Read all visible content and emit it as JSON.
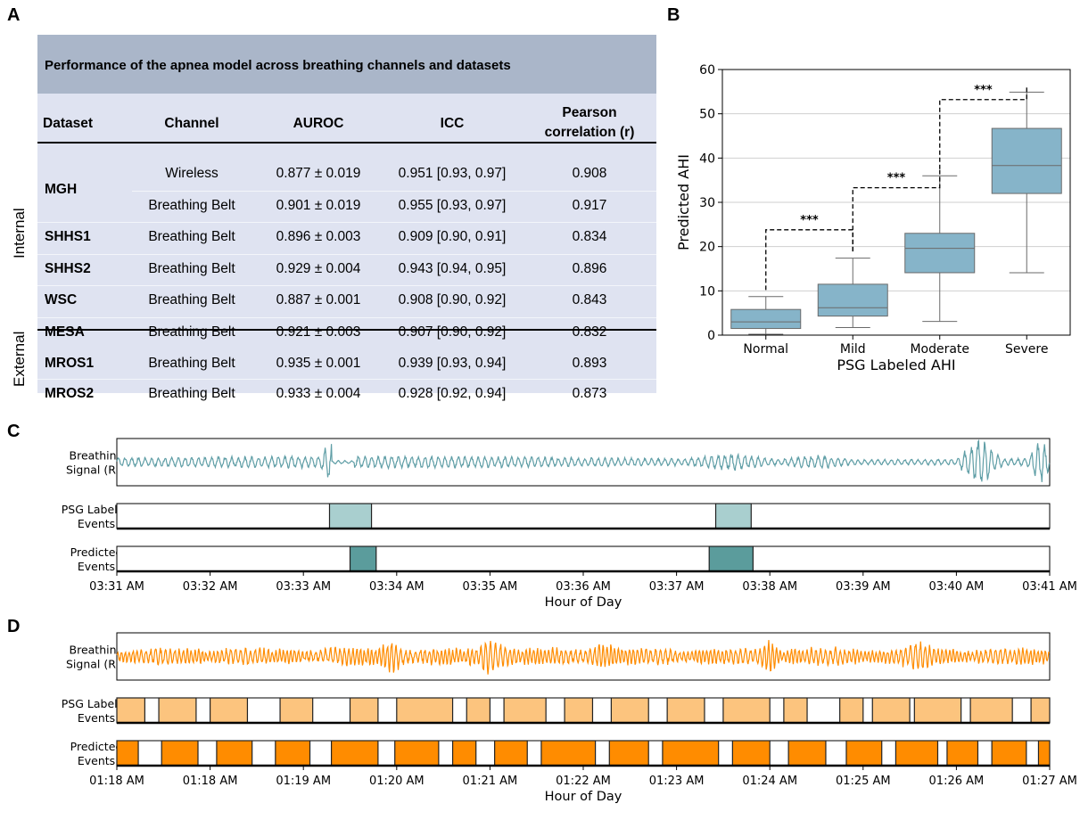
{
  "panels": {
    "a": "A",
    "b": "B",
    "c": "C",
    "d": "D"
  },
  "table": {
    "caption": "Performance of the apnea model across breathing channels and datasets",
    "headers": [
      "Dataset",
      "Channel",
      "AUROC",
      "ICC",
      "Pearson",
      "correlation (r)"
    ],
    "group_internal": "Internal",
    "group_external": "External",
    "rows": [
      {
        "dataset": "MGH",
        "channel": "Wireless",
        "auroc": "0.877 ± 0.019",
        "icc": "0.951 [0.93, 0.97]",
        "r": "0.908"
      },
      {
        "dataset": "",
        "channel": "Breathing Belt",
        "auroc": "0.901 ± 0.019",
        "icc": "0.955 [0.93, 0.97]",
        "r": "0.917"
      },
      {
        "dataset": "SHHS1",
        "channel": "Breathing Belt",
        "auroc": "0.896 ± 0.003",
        "icc": "0.909 [0.90, 0.91]",
        "r": "0.834"
      },
      {
        "dataset": "SHHS2",
        "channel": "Breathing Belt",
        "auroc": "0.929 ± 0.004",
        "icc": "0.943 [0.94, 0.95]",
        "r": "0.896"
      },
      {
        "dataset": "WSC",
        "channel": "Breathing Belt",
        "auroc": "0.887 ± 0.001",
        "icc": "0.908 [0.90, 0.92]",
        "r": "0.843"
      },
      {
        "dataset": "MESA",
        "channel": "Breathing Belt",
        "auroc": "0.921 ± 0.003",
        "icc": "0.907 [0.90, 0.92]",
        "r": "0.832"
      },
      {
        "dataset": "MROS1",
        "channel": "Breathing Belt",
        "auroc": "0.935 ± 0.001",
        "icc": "0.939 [0.93, 0.94]",
        "r": "0.893"
      },
      {
        "dataset": "MROS2",
        "channel": "Breathing Belt",
        "auroc": "0.933 ± 0.004",
        "icc": "0.928 [0.92, 0.94]",
        "r": "0.873"
      }
    ]
  },
  "chart_data": [
    {
      "type": "box",
      "xlabel": "PSG Labeled AHI",
      "ylabel": "Predicted AHI",
      "ylim": [
        0,
        60
      ],
      "yticks": [
        "0",
        "10",
        "20",
        "30",
        "40",
        "50",
        "60"
      ],
      "categories": [
        "Normal",
        "Mild",
        "Moderate",
        "Severe"
      ],
      "boxes": [
        {
          "min": 0.2,
          "q1": 1.5,
          "median": 3.0,
          "q3": 5.8,
          "max": 8.7
        },
        {
          "min": 1.7,
          "q1": 4.3,
          "median": 6.2,
          "q3": 11.5,
          "max": 17.4
        },
        {
          "min": 3.1,
          "q1": 14.1,
          "median": 19.6,
          "q3": 23.0,
          "max": 36.0
        },
        {
          "min": 14.1,
          "q1": 32.0,
          "median": 38.3,
          "q3": 46.7,
          "max": 54.9
        }
      ],
      "significance": [
        {
          "from": 0,
          "to": 1,
          "label": "***",
          "y": 23.8
        },
        {
          "from": 1,
          "to": 2,
          "label": "***",
          "y": 33.3
        },
        {
          "from": 2,
          "to": 3,
          "label": "***",
          "y": 53.2
        }
      ],
      "color": "#86b4c9",
      "grid": "horizontal"
    },
    {
      "type": "timeline",
      "rows": [
        "Breathing\nSignal (RF)",
        "PSG Labeled\nEvents",
        "Predicted\nEvents"
      ],
      "row_labels": [
        [
          "Breathing",
          "Signal (RF)"
        ],
        [
          "PSG Labeled",
          "Events"
        ],
        [
          "Predicted",
          "Events"
        ]
      ],
      "xlabel": "Hour of Day",
      "xticks": [
        "03:31 AM",
        "03:32 AM",
        "03:33 AM",
        "03:34 AM",
        "03:35 AM",
        "03:36 AM",
        "03:37 AM",
        "03:38 AM",
        "03:39 AM",
        "03:40 AM",
        "03:41 AM"
      ],
      "x_range_minutes": [
        0,
        10
      ],
      "signal_color": "#5f9ea6",
      "psg_events": [
        [
          2.28,
          2.73
        ],
        [
          6.42,
          6.8
        ]
      ],
      "predicted_events": [
        [
          2.5,
          2.78
        ],
        [
          6.35,
          6.82
        ]
      ],
      "psg_color": "#a9cfcf",
      "pred_color": "#5b9c9c"
    },
    {
      "type": "timeline",
      "rows": [
        "Breathing\nSignal (RF)",
        "PSG Labeled\nEvents",
        "Predicted\nEvents"
      ],
      "row_labels": [
        [
          "Breathing",
          "Signal (RF)"
        ],
        [
          "PSG Labeled",
          "Events"
        ],
        [
          "Predicted",
          "Events"
        ]
      ],
      "xlabel": "Hour of Day",
      "xticks": [
        "01:18 AM",
        "01:18 AM",
        "01:19 AM",
        "01:20 AM",
        "01:21 AM",
        "01:22 AM",
        "01:23 AM",
        "01:24 AM",
        "01:25 AM",
        "01:26 AM",
        "01:27 AM"
      ],
      "x_range_minutes": [
        0,
        10
      ],
      "signal_color": "#ff8c00",
      "psg_events": [
        [
          0,
          0.3
        ],
        [
          0.45,
          0.85
        ],
        [
          1.0,
          1.4
        ],
        [
          1.75,
          2.1
        ],
        [
          2.5,
          2.8
        ],
        [
          3.0,
          3.6
        ],
        [
          3.75,
          4.0
        ],
        [
          4.15,
          4.6
        ],
        [
          4.8,
          5.1
        ],
        [
          5.3,
          5.7
        ],
        [
          5.9,
          6.3
        ],
        [
          6.5,
          7.0
        ],
        [
          7.15,
          7.4
        ],
        [
          7.75,
          8.0
        ],
        [
          8.1,
          8.5
        ],
        [
          8.55,
          9.05
        ],
        [
          9.15,
          9.6
        ],
        [
          9.8,
          10.0
        ]
      ],
      "predicted_events": [
        [
          0,
          0.23
        ],
        [
          0.48,
          0.87
        ],
        [
          1.07,
          1.45
        ],
        [
          1.7,
          2.07
        ],
        [
          2.3,
          2.8
        ],
        [
          2.98,
          3.45
        ],
        [
          3.6,
          3.85
        ],
        [
          4.05,
          4.4
        ],
        [
          4.55,
          5.13
        ],
        [
          5.28,
          5.7
        ],
        [
          5.85,
          6.45
        ],
        [
          6.6,
          7.0
        ],
        [
          7.2,
          7.6
        ],
        [
          7.82,
          8.2
        ],
        [
          8.35,
          8.8
        ],
        [
          8.9,
          9.23
        ],
        [
          9.38,
          9.75
        ],
        [
          9.88,
          10.0
        ]
      ],
      "psg_color": "#fcc47e",
      "pred_color": "#ff8c00"
    }
  ]
}
